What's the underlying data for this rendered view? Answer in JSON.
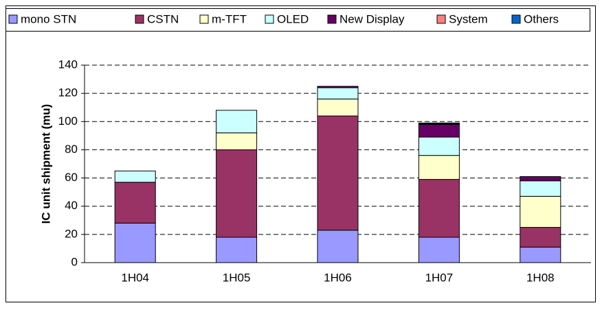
{
  "chart_data": {
    "type": "stacked_bar",
    "y_label": "IC unit shipment (mu)",
    "categories": [
      "1H04",
      "1H05",
      "1H06",
      "1H07",
      "1H08"
    ],
    "series": [
      {
        "name": "mono STN",
        "color": "#9999ff",
        "values": [
          28,
          18,
          23,
          18,
          11
        ]
      },
      {
        "name": "CSTN",
        "color": "#993366",
        "values": [
          29,
          62,
          81,
          41,
          14
        ]
      },
      {
        "name": "m-TFT",
        "color": "#ffffcc",
        "values": [
          0,
          12,
          12,
          17,
          22
        ]
      },
      {
        "name": "OLED",
        "color": "#ccffff",
        "values": [
          8,
          16,
          8,
          13,
          11
        ]
      },
      {
        "name": "New Display",
        "color": "#660066",
        "values": [
          0,
          0,
          1,
          9,
          3
        ]
      },
      {
        "name": "System",
        "color": "#ff8080",
        "values": [
          0,
          0,
          0,
          0.5,
          0
        ]
      },
      {
        "name": "Others",
        "color": "#0066cc",
        "values": [
          0,
          0,
          0,
          0.5,
          0
        ]
      }
    ],
    "ylim": [
      0,
      140
    ],
    "yticks": [
      0,
      20,
      40,
      60,
      80,
      100,
      120,
      140
    ],
    "grid": true,
    "legend": "top"
  }
}
